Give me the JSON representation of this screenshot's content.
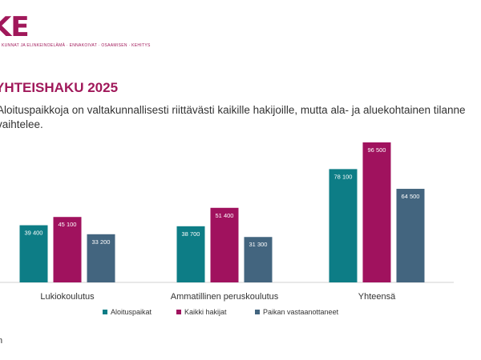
{
  "header": {
    "logo_text": "KE",
    "logo_tagline": "KUNNAT JA ELINKEINOELÄMÄ · ENNAKOIVAT · OSAAMISEN · KEHITYS",
    "title": "YHTEISHAKU 2025",
    "subtitle": "Aloituspaikkoja on valtakunnallisesti riittävästi kaikille hakijoille, mutta ala- ja aluekohtainen tilanne vaihtelee."
  },
  "footer": {
    "source_fragment": "n"
  },
  "colors": {
    "accent": "#a0185a",
    "series": [
      "#0d7d86",
      "#a0125e",
      "#43657f"
    ]
  },
  "chart_data": {
    "type": "bar",
    "title": "",
    "xlabel": "",
    "ylabel": "",
    "categories": [
      "Lukiokoulutus",
      "Ammatillinen peruskoulutus",
      "Yhteensä"
    ],
    "series": [
      {
        "name": "Aloituspaikat",
        "values": [
          39400,
          38700,
          78100
        ],
        "labels": [
          "39 400",
          "38 700",
          "78 100"
        ]
      },
      {
        "name": "Kaikki hakijat",
        "values": [
          45100,
          51400,
          96500
        ],
        "labels": [
          "45 100",
          "51 400",
          "96 500"
        ]
      },
      {
        "name": "Paikan vastaanottaneet",
        "values": [
          33200,
          31300,
          64500
        ],
        "labels": [
          "33 200",
          "31 300",
          "64 500"
        ]
      }
    ],
    "ylim": [
      0,
      100000
    ],
    "grid": false,
    "legend": "bottom-center"
  }
}
